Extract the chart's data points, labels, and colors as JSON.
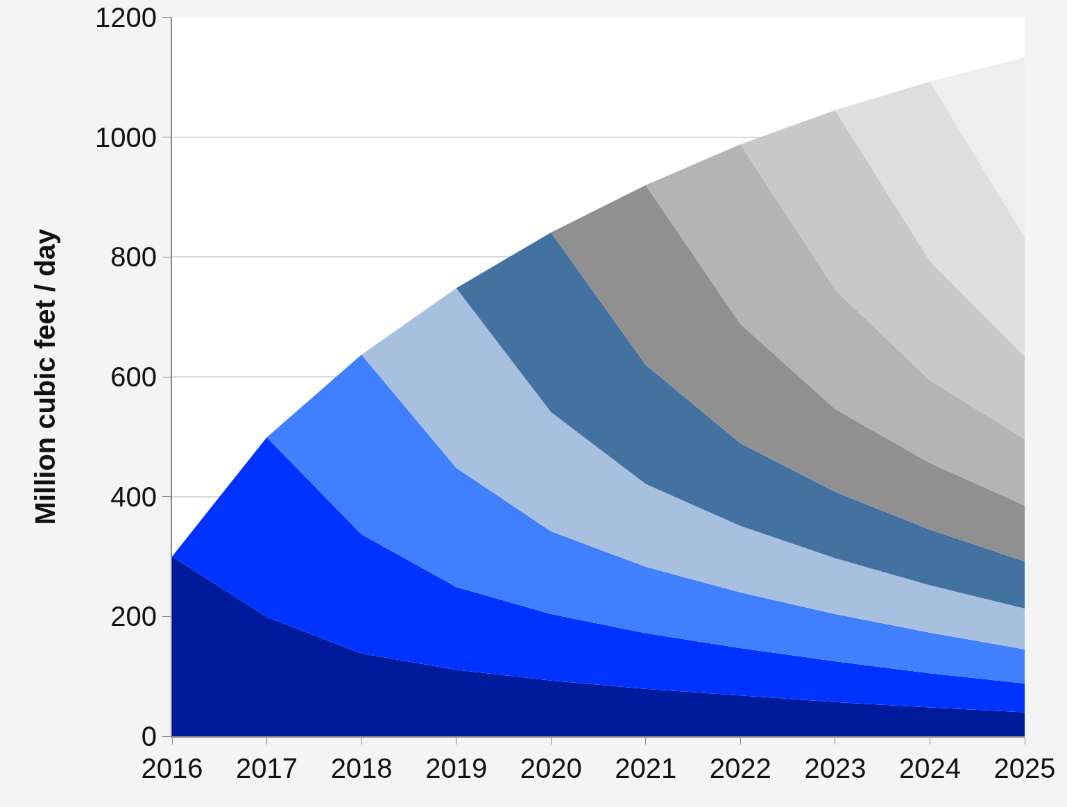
{
  "chart_data": {
    "type": "area",
    "stacked": true,
    "ylabel": "Million cubic feet / day",
    "x": [
      2016,
      2017,
      2018,
      2019,
      2020,
      2021,
      2022,
      2023,
      2024,
      2025
    ],
    "xlim": [
      2016,
      2025
    ],
    "xticks": [
      2016,
      2017,
      2018,
      2019,
      2020,
      2021,
      2022,
      2023,
      2024,
      2025
    ],
    "ylim": [
      0,
      1200
    ],
    "yticks": [
      0,
      200,
      400,
      600,
      800,
      1000,
      1200
    ],
    "grid": "y",
    "series": [
      {
        "color": "#001a9c",
        "values": [
          300,
          199,
          138,
          111,
          93,
          79,
          68,
          57,
          48,
          40
        ]
      },
      {
        "color": "#0033ff",
        "values": [
          0,
          300,
          199,
          138,
          111,
          93,
          79,
          68,
          57,
          48
        ]
      },
      {
        "color": "#4080ff",
        "values": [
          0,
          0,
          300,
          199,
          138,
          111,
          93,
          79,
          68,
          57
        ]
      },
      {
        "color": "#a8c0e0",
        "values": [
          0,
          0,
          0,
          300,
          199,
          138,
          111,
          93,
          79,
          68
        ]
      },
      {
        "color": "#4472a0",
        "values": [
          0,
          0,
          0,
          0,
          300,
          199,
          138,
          111,
          93,
          79
        ]
      },
      {
        "color": "#909090",
        "values": [
          0,
          0,
          0,
          0,
          0,
          300,
          199,
          138,
          111,
          93
        ]
      },
      {
        "color": "#b4b4b4",
        "values": [
          0,
          0,
          0,
          0,
          0,
          0,
          300,
          199,
          138,
          111
        ]
      },
      {
        "color": "#c8c8c8",
        "values": [
          0,
          0,
          0,
          0,
          0,
          0,
          0,
          300,
          199,
          138
        ]
      },
      {
        "color": "#dedede",
        "values": [
          0,
          0,
          0,
          0,
          0,
          0,
          0,
          0,
          300,
          199
        ]
      },
      {
        "color": "#eeeeee",
        "values": [
          0,
          0,
          0,
          0,
          0,
          0,
          0,
          0,
          0,
          300
        ]
      }
    ]
  }
}
